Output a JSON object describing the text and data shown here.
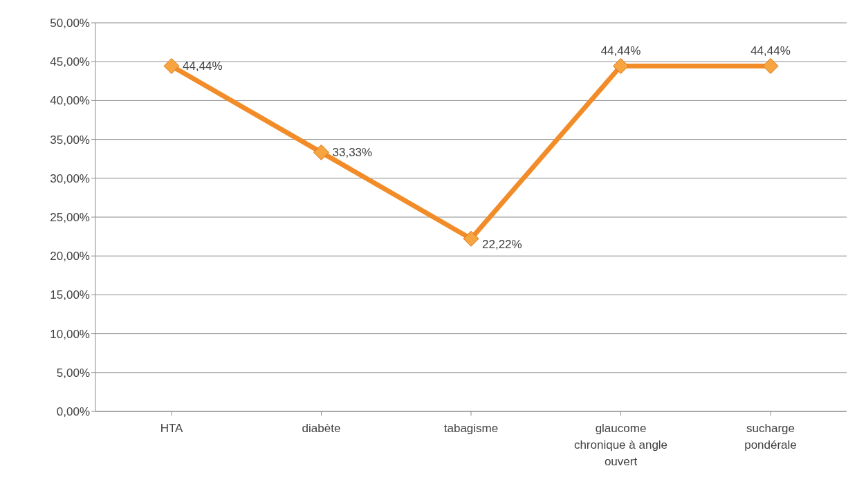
{
  "chart_data": {
    "type": "line",
    "categories": [
      "HTA",
      "diabète",
      "tabagisme",
      "glaucome chronique à angle ouvert",
      "sucharge pondérale"
    ],
    "series": [
      {
        "color": "#f28c28",
        "values": [
          44.44,
          33.33,
          22.22,
          44.44,
          44.44
        ],
        "value_labels": [
          "44,44%",
          "33,33%",
          "22,22%",
          "44,44%",
          "44,44%"
        ]
      }
    ],
    "ylim": [
      0,
      50
    ],
    "yticks": [
      {
        "value": 0,
        "label": "0,00%"
      },
      {
        "value": 5,
        "label": "5,00%"
      },
      {
        "value": 10,
        "label": "10,00%"
      },
      {
        "value": 15,
        "label": "15,00%"
      },
      {
        "value": 20,
        "label": "20,00%"
      },
      {
        "value": 25,
        "label": "25,00%"
      },
      {
        "value": 30,
        "label": "30,00%"
      },
      {
        "value": 35,
        "label": "35,00%"
      },
      {
        "value": 40,
        "label": "40,00%"
      },
      {
        "value": 45,
        "label": "45,00%"
      },
      {
        "value": 50,
        "label": "50,00%"
      }
    ],
    "grid": "y",
    "legend": false,
    "marker": "diamond",
    "line_style": "solid"
  }
}
